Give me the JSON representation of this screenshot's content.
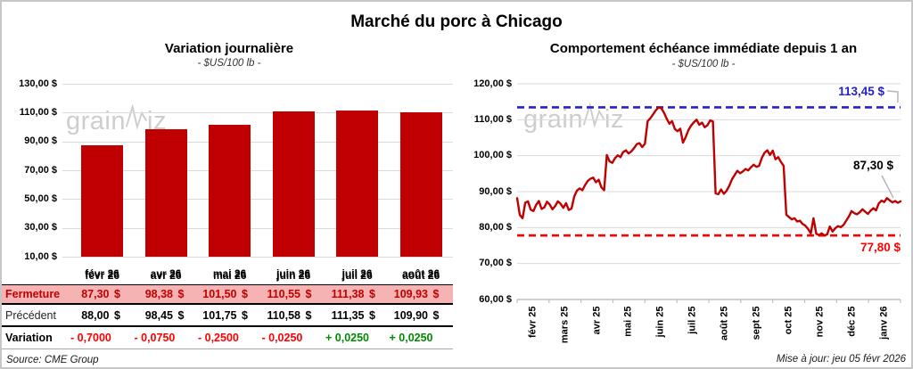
{
  "header": {
    "title": "Marché du porc à Chicago"
  },
  "watermark": {
    "part1": "grain",
    "part2": "iz"
  },
  "footer": {
    "source": "Source: CME Group",
    "updated": "Mise à jour: jeu 05 févr 2026"
  },
  "colors": {
    "bar": "#C00000",
    "line": "#C00000",
    "ref_high": "#2222CC",
    "ref_low": "#FF0000",
    "negative": "#FF0000",
    "positive": "#008A00",
    "fermeture_bg": "#F5B3B3",
    "grid": "#dadada",
    "axis": "#bfbfbf"
  },
  "chart_data": [
    {
      "type": "bar",
      "title": "Variation journalière",
      "subtitle": "- $US/100 lb -",
      "categories": [
        "févr 26",
        "avr 26",
        "mai 26",
        "juin 26",
        "juil 26",
        "août 26"
      ],
      "values": [
        87.3,
        98.38,
        101.5,
        110.55,
        111.38,
        109.93
      ],
      "ylim": [
        10,
        130
      ],
      "ytick_values": [
        130,
        110,
        90,
        70,
        50,
        30,
        10
      ],
      "ytick_labels": [
        "130,00 $",
        "110,00 $",
        "90,00 $",
        "70,00 $",
        "50,00 $",
        "30,00 $",
        "10,00 $"
      ],
      "bar_color": "#C00000",
      "grid": true,
      "legend": "none"
    },
    {
      "type": "line",
      "title": "Comportement échéance immédiate depuis 1 an",
      "subtitle": "- $US/100 lb -",
      "x_labels": [
        "févr 25",
        "mars 25",
        "avr 25",
        "mai 25",
        "juin 25",
        "juil 25",
        "août 25",
        "sept 25",
        "oct 25",
        "nov 25",
        "déc 25",
        "janv 26"
      ],
      "ylim": [
        60,
        120
      ],
      "ytick_values": [
        120,
        110,
        100,
        90,
        80,
        70,
        60
      ],
      "ytick_labels": [
        "120,00 $",
        "110,00 $",
        "100,00 $",
        "90,00 $",
        "80,00 $",
        "70,00 $",
        "60,00 $"
      ],
      "line_color": "#C00000",
      "grid": true,
      "legend": "none",
      "ref_high": {
        "value": 113.45,
        "label": "113,45 $",
        "color": "#2222CC"
      },
      "ref_low": {
        "value": 77.8,
        "label": "77,80 $",
        "color": "#FF0000"
      },
      "last_point": {
        "value": 87.3,
        "label": "87,30 $"
      },
      "values": [
        88.2,
        83.5,
        82.6,
        86.9,
        87.3,
        85.0,
        84.6,
        86.3,
        87.4,
        85.2,
        85.6,
        87.2,
        86.4,
        85.1,
        86.0,
        87.3,
        86.6,
        85.5,
        86.8,
        84.9,
        85.3,
        88.6,
        90.3,
        90.9,
        90.4,
        91.8,
        93.0,
        93.6,
        93.9,
        92.6,
        93.3,
        91.2,
        90.4,
        100.2,
        98.4,
        98.0,
        99.3,
        100.1,
        99.6,
        101.0,
        101.5,
        100.6,
        101.2,
        102.1,
        103.2,
        103.5,
        102.4,
        103.3,
        109.6,
        110.4,
        111.5,
        112.6,
        113.4,
        113.2,
        112.0,
        110.3,
        108.9,
        109.6,
        107.4,
        106.8,
        107.5,
        103.6,
        105.2,
        107.1,
        108.4,
        109.3,
        110.0,
        108.6,
        109.2,
        107.9,
        108.5,
        109.8,
        109.5,
        89.5,
        89.3,
        90.6,
        89.4,
        90.2,
        91.6,
        93.4,
        94.6,
        95.8,
        95.1,
        95.6,
        96.3,
        95.9,
        96.8,
        97.5,
        96.9,
        97.2,
        99.4,
        100.8,
        101.5,
        100.2,
        101.4,
        99.0,
        99.6,
        98.3,
        97.2,
        83.6,
        82.9,
        82.3,
        82.6,
        81.7,
        81.9,
        81.0,
        80.5,
        79.6,
        78.4,
        82.6,
        78.3,
        77.9,
        78.4,
        77.8,
        78.1,
        80.3,
        78.9,
        79.8,
        80.4,
        80.1,
        80.7,
        81.9,
        83.1,
        84.6,
        84.0,
        83.7,
        84.3,
        85.1,
        84.4,
        83.8,
        84.7,
        85.4,
        84.8,
        86.7,
        87.5,
        87.1,
        88.2,
        87.6,
        87.0,
        87.4,
        86.9,
        87.3
      ]
    }
  ],
  "table": {
    "currency": "$",
    "rows": [
      {
        "label": "Fermeture",
        "style": "fermeture",
        "currency": true,
        "values": [
          "87,30",
          "98,38",
          "101,50",
          "110,55",
          "111,38",
          "109,93"
        ]
      },
      {
        "label": "Précédent",
        "style": "precedent",
        "currency": true,
        "values": [
          "88,00",
          "98,45",
          "101,75",
          "110,58",
          "111,35",
          "109,90"
        ]
      },
      {
        "label": "Variation",
        "style": "variation",
        "currency": false,
        "values": [
          "- 0,7000",
          "- 0,0750",
          "- 0,2500",
          "- 0,0250",
          "+ 0,0250",
          "+ 0,0250"
        ],
        "value_styles": [
          "neg",
          "neg",
          "neg",
          "neg",
          "pos",
          "pos"
        ]
      }
    ]
  }
}
